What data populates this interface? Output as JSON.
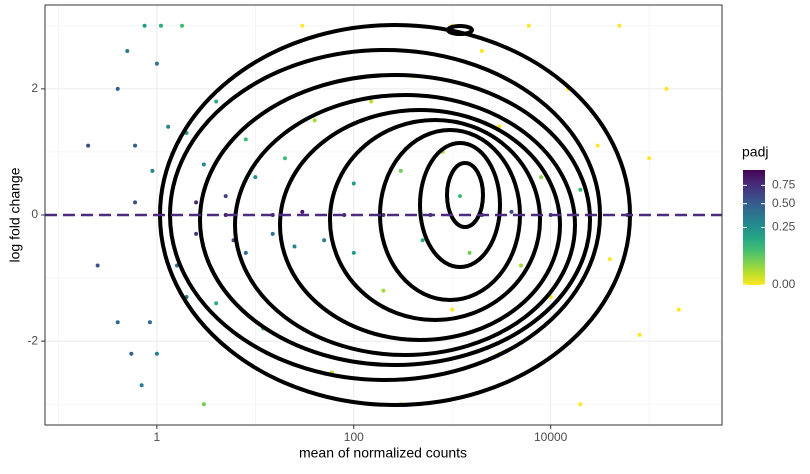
{
  "chart_data": {
    "type": "scatter",
    "x_label": "mean of normalized counts",
    "y_label": "log fold change",
    "x_log": true,
    "xlim": [
      0.073,
      550000
    ],
    "xticks": [
      1,
      100,
      10000
    ],
    "xminor": [
      0.1,
      10,
      1000,
      100000
    ],
    "ylim": [
      -3.33,
      3.33
    ],
    "yticks": [
      -2,
      0,
      2
    ],
    "yminor": [
      -3,
      -1,
      1,
      3
    ],
    "grid": true,
    "reference_line": {
      "y": 0,
      "color": "#4b2c7f"
    },
    "color_title": "padj",
    "colormap": "viridis",
    "colormap_reversed": true,
    "color_transform": "sqrt",
    "clim": [
      0,
      1
    ],
    "color_ticks": [
      {
        "value": 0,
        "label": "0.00"
      },
      {
        "value": 0.25,
        "label": "0.25"
      },
      {
        "value": 0.5,
        "label": "0.50"
      },
      {
        "value": 0.75,
        "label": "0.75"
      }
    ],
    "legend": "right",
    "x": [
      0.2,
      0.25,
      0.4,
      0.4,
      0.5,
      0.55,
      0.6,
      0.6,
      0.7,
      0.75,
      0.85,
      0.9,
      1.0,
      1.0,
      1.1,
      1.3,
      1.5,
      1.6,
      1.8,
      2,
      2,
      2.5,
      2.5,
      3,
      3,
      4,
      4,
      5,
      5,
      6,
      8,
      8,
      10,
      12,
      15,
      15,
      20,
      25,
      30,
      30,
      40,
      50,
      60,
      80,
      100,
      100,
      150,
      150,
      200,
      200,
      300,
      300,
      400,
      500,
      600,
      800,
      1000,
      1000,
      1200,
      1500,
      2000,
      2000,
      3000,
      3000,
      4000,
      5000,
      6000,
      8000,
      10000,
      10000,
      15000,
      20000,
      20000,
      30000,
      40000,
      50000,
      60000,
      80000,
      100000,
      150000,
      200000
    ],
    "y": [
      1.1,
      -0.8,
      2.0,
      -1.7,
      2.6,
      -2.2,
      0.2,
      1.1,
      -2.7,
      3,
      -1.7,
      0.7,
      2.4,
      -2.2,
      3,
      1.4,
      0.5,
      -0.8,
      3,
      1.3,
      -1.3,
      0.2,
      -0.3,
      0.8,
      -3,
      1.8,
      -1.4,
      0.0,
      0.3,
      -0.4,
      1.2,
      -0.6,
      0.6,
      -1.8,
      0.0,
      -0.3,
      0.9,
      -0.5,
      3,
      0.05,
      1.5,
      -0.4,
      -2.5,
      0.0,
      0.5,
      -0.6,
      3,
      1.8,
      0.0,
      -1.2,
      0.7,
      -3,
      2.2,
      -0.4,
      0.0,
      1.0,
      -1.5,
      3,
      0.3,
      -0.6,
      0.0,
      2.6,
      -2.2,
      1.4,
      0.05,
      -0.8,
      3,
      0.6,
      -1.3,
      0.0,
      2.0,
      -3,
      0.4,
      1.1,
      -0.7,
      3,
      0.0,
      -1.9,
      0.9,
      2.0,
      -1.5
    ],
    "padj": [
      0.6,
      0.55,
      0.5,
      0.45,
      0.35,
      0.5,
      0.6,
      0.5,
      0.35,
      0.2,
      0.45,
      0.3,
      0.4,
      0.3,
      0.15,
      0.3,
      0.55,
      0.4,
      0.1,
      0.2,
      0.35,
      0.8,
      0.7,
      0.3,
      0.05,
      0.15,
      0.15,
      0.9,
      0.65,
      0.6,
      0.1,
      0.45,
      0.25,
      0.08,
      0.85,
      0.4,
      0.1,
      0.3,
      0,
      0.9,
      0.02,
      0.35,
      0.01,
      0.8,
      0.2,
      0.2,
      0,
      0.01,
      0.7,
      0.02,
      0.05,
      0,
      0,
      0.15,
      0.75,
      0.01,
      0,
      0,
      0.1,
      0.05,
      0.65,
      0,
      0,
      0,
      0.6,
      0.02,
      0,
      0.03,
      0,
      0.7,
      0,
      0,
      0.1,
      0,
      0,
      0,
      0.5,
      0,
      0,
      0,
      0
    ]
  }
}
